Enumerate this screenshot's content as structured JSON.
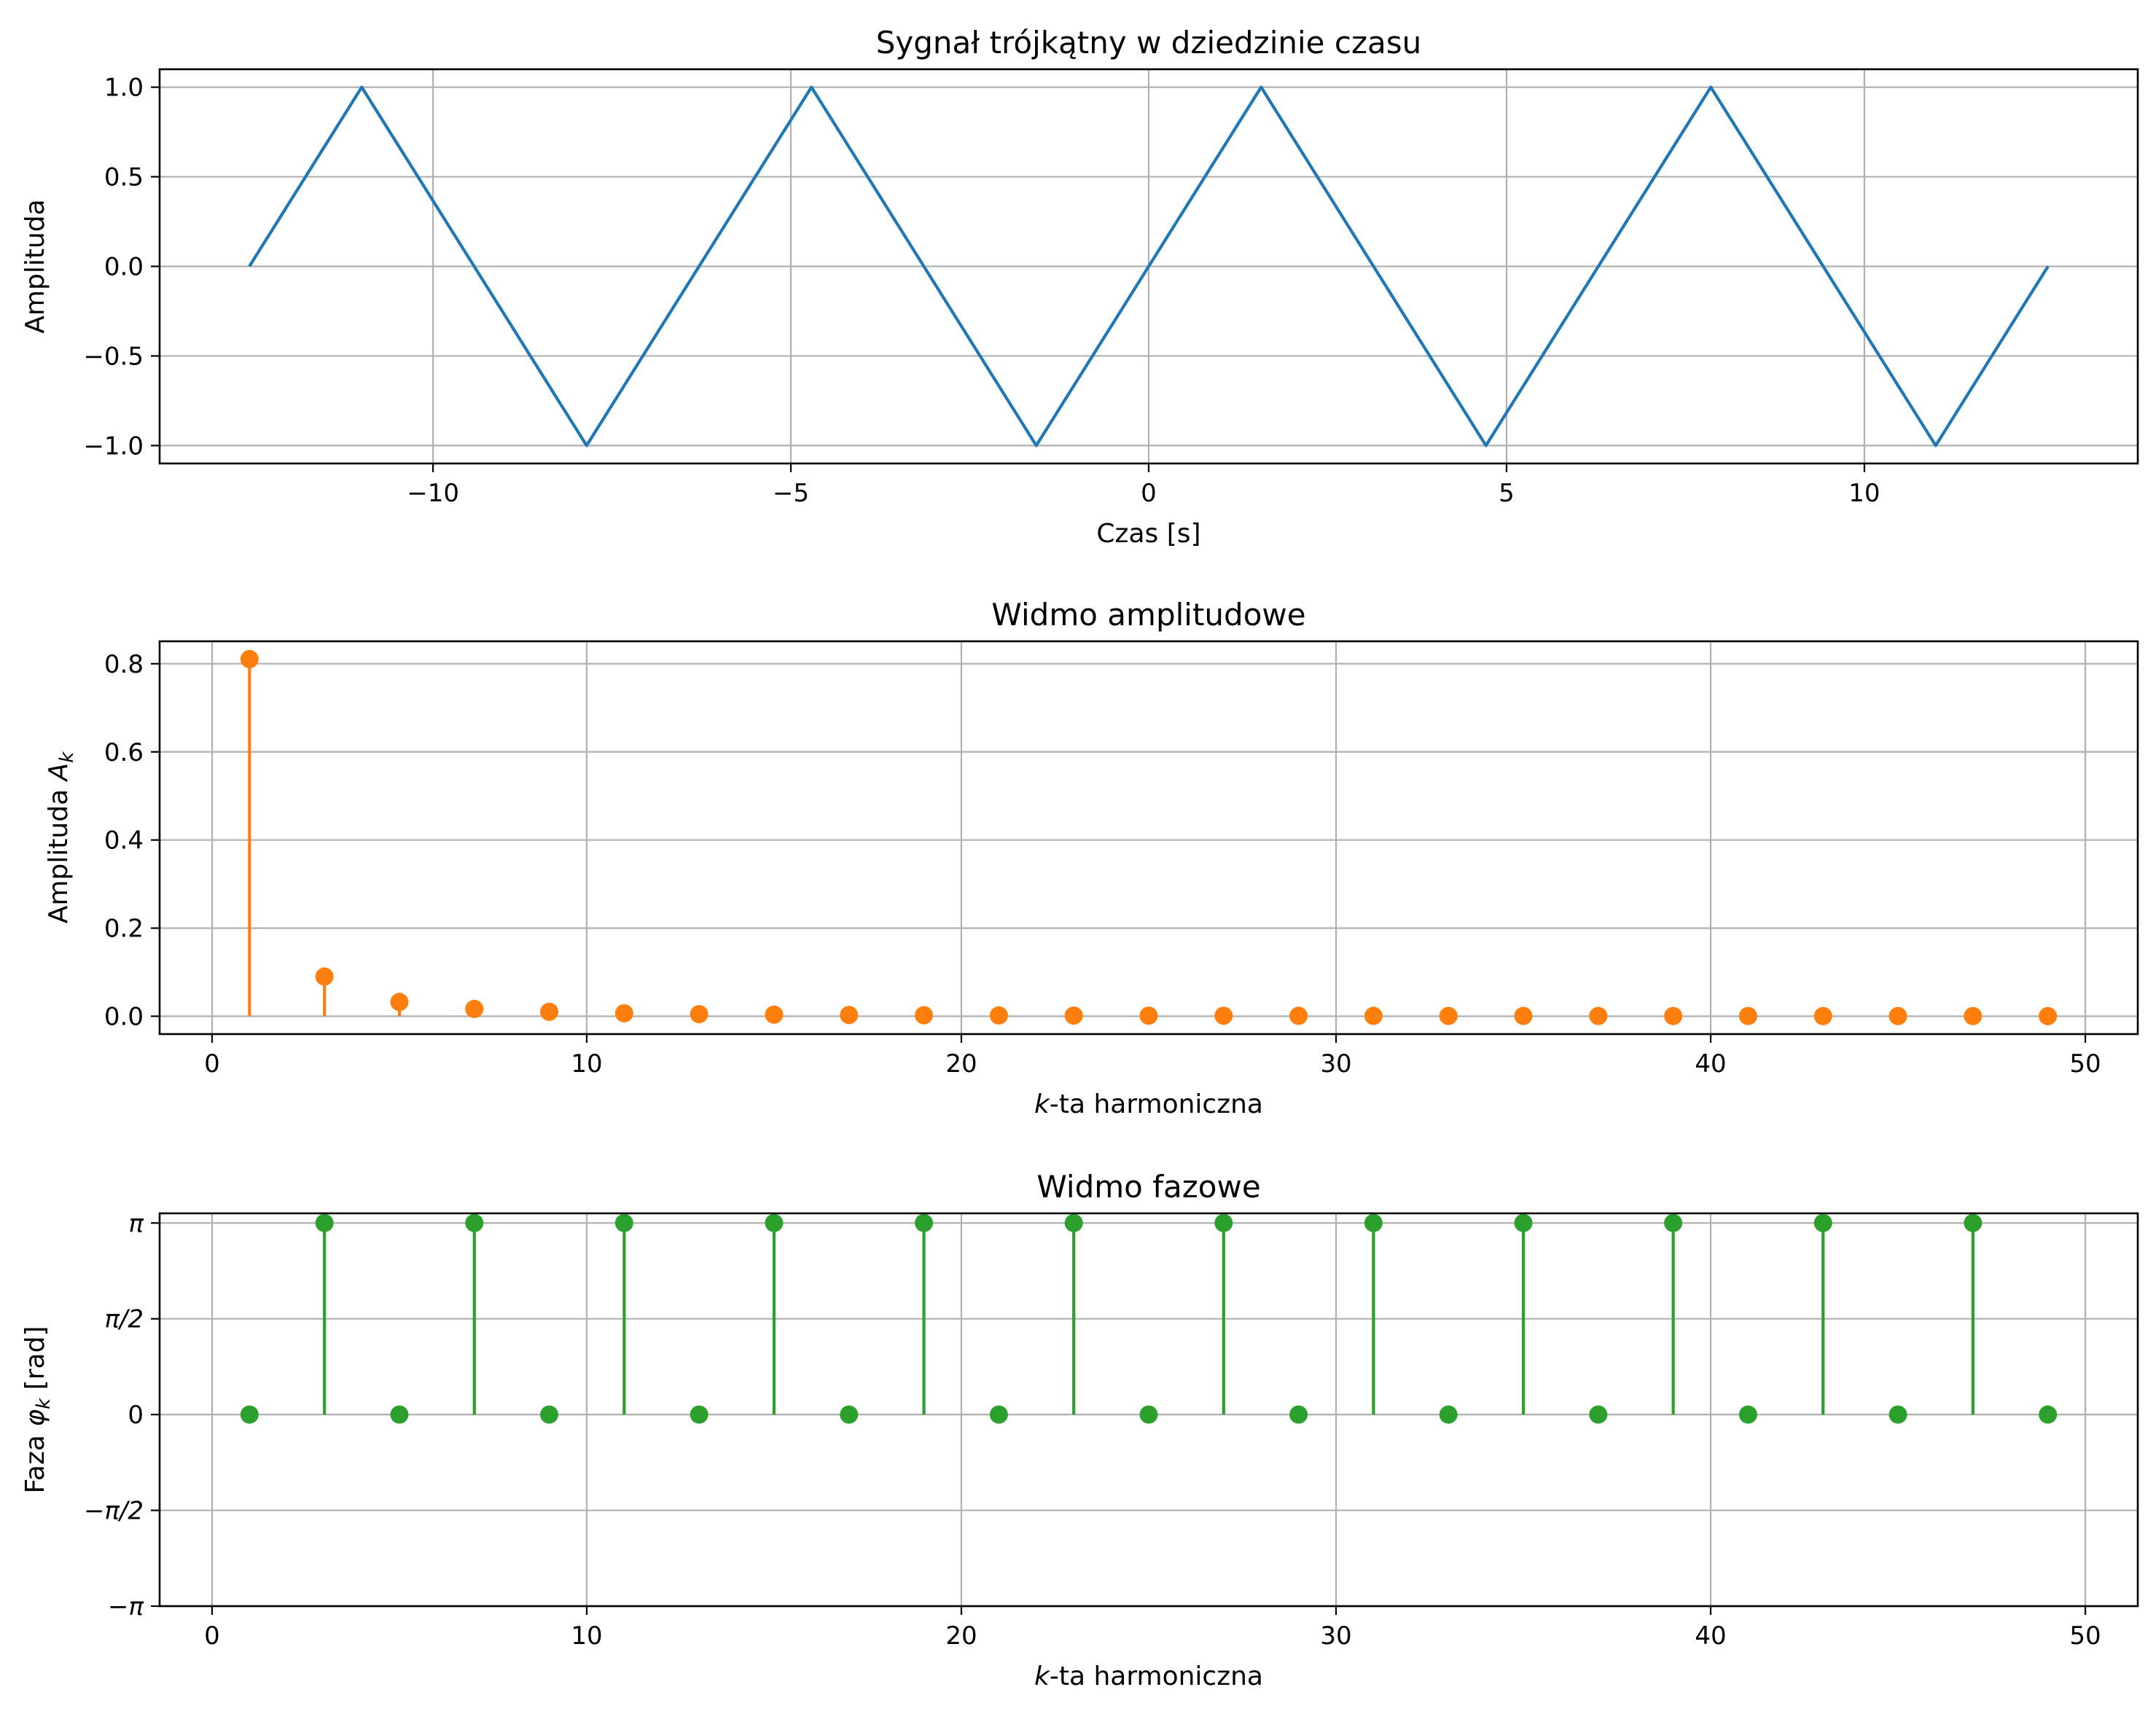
{
  "chart_data": [
    {
      "type": "line",
      "title": "Sygnał trójkątny w dziedzinie czasu",
      "xlabel": "Czas [s]",
      "ylabel": "Amplituda",
      "xlim": [
        -13.82,
        13.82
      ],
      "ylim": [
        -1.1,
        1.1
      ],
      "xticks": [
        -10,
        -5,
        0,
        5,
        10
      ],
      "xticklabels": [
        "−10",
        "−5",
        "0",
        "5",
        "10"
      ],
      "yticks": [
        -1.0,
        -0.5,
        0.0,
        0.5,
        1.0
      ],
      "yticklabels": [
        "−1.0",
        "−0.5",
        "0.0",
        "0.5",
        "1.0"
      ],
      "grid": true,
      "color": "#1f77b4",
      "series": [
        {
          "x": [
            -12.566,
            -10.996,
            -7.854,
            -4.712,
            -1.571,
            1.571,
            4.712,
            7.854,
            10.996,
            12.566
          ],
          "y": [
            0,
            1,
            -1,
            1,
            -1,
            1,
            -1,
            1,
            -1,
            0
          ]
        }
      ]
    },
    {
      "type": "stem",
      "title": "Widmo amplitudowe",
      "xlabel": "k-ta harmoniczna",
      "ylabel": "Amplituda A_k",
      "xlim": [
        -1.4,
        51.4
      ],
      "ylim": [
        -0.0405,
        0.851
      ],
      "xticks": [
        0,
        10,
        20,
        30,
        40,
        50
      ],
      "xticklabels": [
        "0",
        "10",
        "20",
        "30",
        "40",
        "50"
      ],
      "yticks": [
        0.0,
        0.2,
        0.4,
        0.6,
        0.8
      ],
      "yticklabels": [
        "0.0",
        "0.2",
        "0.4",
        "0.6",
        "0.8"
      ],
      "grid": true,
      "color": "#ff7f0e",
      "series": [
        {
          "x": [
            1,
            3,
            5,
            7,
            9,
            11,
            13,
            15,
            17,
            19,
            21,
            23,
            25,
            27,
            29,
            31,
            33,
            35,
            37,
            39,
            41,
            43,
            45,
            47,
            49
          ],
          "y": [
            0.8106,
            0.0901,
            0.0324,
            0.0165,
            0.01,
            0.0067,
            0.0048,
            0.0036,
            0.0028,
            0.0022,
            0.0018,
            0.0015,
            0.0013,
            0.0011,
            0.001,
            0.0008,
            0.0007,
            0.0007,
            0.0006,
            0.0005,
            0.0005,
            0.0004,
            0.0004,
            0.0004,
            0.0003
          ]
        }
      ]
    },
    {
      "type": "stem",
      "title": "Widmo fazowe",
      "xlabel": "k-ta harmoniczna",
      "ylabel": "Faza φ_k [rad]",
      "xlim": [
        -1.4,
        51.4
      ],
      "ylim": [
        -3.1416,
        3.3
      ],
      "xticks": [
        0,
        10,
        20,
        30,
        40,
        50
      ],
      "xticklabels": [
        "0",
        "10",
        "20",
        "30",
        "40",
        "50"
      ],
      "yticks": [
        -3.1416,
        -1.5708,
        0,
        1.5708,
        3.1416
      ],
      "yticklabels": [
        "−π",
        "−π/2",
        "0",
        "π/2",
        "π"
      ],
      "grid": true,
      "color": "#2ca02c",
      "series": [
        {
          "x": [
            1,
            3,
            5,
            7,
            9,
            11,
            13,
            15,
            17,
            19,
            21,
            23,
            25,
            27,
            29,
            31,
            33,
            35,
            37,
            39,
            41,
            43,
            45,
            47,
            49
          ],
          "y": [
            0,
            3.1416,
            0,
            3.1416,
            0,
            3.1416,
            0,
            3.1416,
            0,
            3.1416,
            0,
            3.1416,
            0,
            3.1416,
            0,
            3.1416,
            0,
            3.1416,
            0,
            3.1416,
            0,
            3.1416,
            0,
            3.1416,
            0
          ]
        }
      ]
    }
  ]
}
